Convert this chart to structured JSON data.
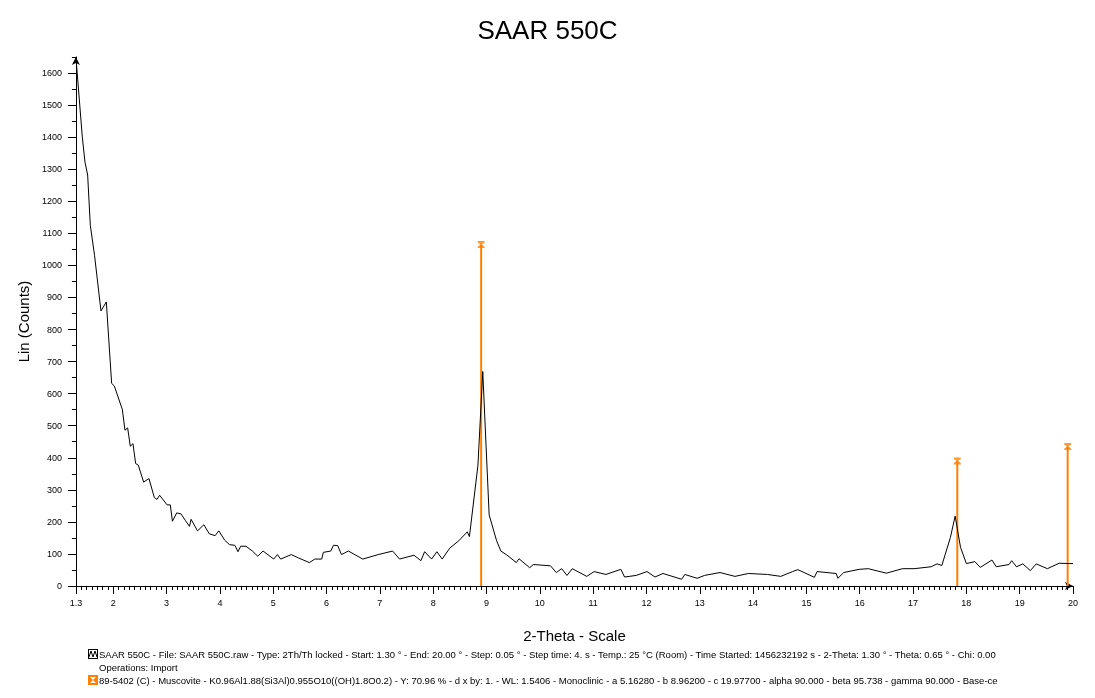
{
  "chart_data": {
    "type": "line",
    "title": "SAAR 550C",
    "xlabel": "2-Theta - Scale",
    "ylabel": "Lin (Counts)",
    "xlim": [
      1.3,
      20
    ],
    "xticks": [
      1.3,
      2,
      3,
      4,
      5,
      6,
      7,
      8,
      9,
      10,
      11,
      12,
      13,
      14,
      15,
      16,
      17,
      18,
      19,
      20
    ],
    "ylim": [
      0,
      1650
    ],
    "yticks": [
      0,
      100,
      200,
      300,
      400,
      500,
      600,
      700,
      800,
      900,
      1000,
      1100,
      1200,
      1300,
      1400,
      1500,
      1600
    ],
    "grid": false,
    "series": [
      {
        "color": "#000000",
        "x": [
          1.3,
          1.42,
          1.47,
          1.52,
          1.57,
          1.65,
          1.77,
          1.87,
          1.97,
          2.02,
          2.17,
          2.22,
          2.27,
          2.32,
          2.37,
          2.42,
          2.47,
          2.57,
          2.67,
          2.77,
          2.82,
          2.87,
          3.01,
          3.07,
          3.11,
          3.19,
          3.27,
          3.35,
          3.43,
          3.46,
          3.58,
          3.7,
          3.8,
          3.91,
          3.98,
          4.09,
          4.18,
          4.28,
          4.34,
          4.39,
          4.49,
          4.61,
          4.71,
          4.81,
          5.01,
          5.08,
          5.14,
          5.34,
          5.48,
          5.68,
          5.78,
          5.91,
          5.94,
          6.08,
          6.13,
          6.21,
          6.28,
          6.41,
          6.68,
          6.97,
          7.24,
          7.37,
          7.64,
          7.77,
          7.84,
          7.97,
          8.07,
          8.17,
          8.31,
          8.48,
          8.64,
          8.68,
          8.84,
          8.93,
          9.05,
          9.19,
          9.27,
          9.38,
          9.56,
          9.61,
          9.81,
          9.88,
          10.2,
          10.31,
          10.41,
          10.51,
          10.61,
          10.88,
          11.02,
          11.24,
          11.52,
          11.59,
          11.81,
          12.01,
          12.16,
          12.31,
          12.66,
          12.72,
          12.95,
          13.09,
          13.38,
          13.66,
          13.91,
          14.27,
          14.52,
          14.74,
          14.84,
          15.15,
          15.2,
          15.56,
          15.59,
          15.7,
          15.99,
          16.16,
          16.5,
          16.8,
          17.02,
          17.34,
          17.45,
          17.54,
          17.7,
          17.79,
          17.89,
          18.0,
          18.16,
          18.26,
          18.48,
          18.56,
          18.8,
          18.85,
          18.94,
          19.06,
          19.2,
          19.31,
          19.52,
          19.74,
          19.93,
          20
        ],
        "values": [
          1650,
          1400,
          1322,
          1282,
          1125,
          1030,
          858,
          886,
          632,
          624,
          551,
          486,
          493,
          436,
          444,
          382,
          377,
          324,
          335,
          276,
          270,
          283,
          253,
          253,
          202,
          228,
          225,
          205,
          186,
          208,
          172,
          191,
          163,
          157,
          172,
          143,
          129,
          127,
          107,
          124,
          124,
          109,
          93,
          109,
          84,
          98,
          84,
          98,
          87,
          73,
          84,
          84,
          105,
          109,
          127,
          126,
          98,
          109,
          84,
          98,
          109,
          84,
          96,
          79,
          107,
          84,
          107,
          84,
          118,
          141,
          169,
          154,
          377,
          669,
          222,
          141,
          109,
          97,
          73,
          85,
          57,
          67,
          63,
          42,
          54,
          33,
          54,
          30,
          45,
          36,
          52,
          28,
          33,
          45,
          28,
          39,
          21,
          36,
          24,
          33,
          42,
          30,
          39,
          36,
          30,
          45,
          51,
          27,
          45,
          39,
          24,
          42,
          52,
          54,
          40,
          54,
          54,
          60,
          69,
          64,
          151,
          218,
          121,
          70,
          76,
          58,
          81,
          60,
          67,
          79,
          60,
          69,
          48,
          69,
          54,
          71,
          70,
          70
        ]
      },
      {
        "type": "lollipop",
        "color": "#ff8000",
        "x": [
          8.9,
          17.83,
          19.9
        ],
        "values": [
          1065,
          390,
          435
        ]
      }
    ],
    "annotations": [
      "SAAR 550C - File: SAAR 550C.raw - Type: 2Th/Th locked - Start: 1.30 ° - End: 20.00 ° - Step: 0.05 ° - Step time: 4. s - Temp.: 25 °C (Room) - Time Started: 1456232192 s - 2-Theta: 1.30 ° - Theta: 0.65 ° - Chi: 0.00",
      "Operations: Import",
      "89-5402 (C) - Muscovite - K0.96Al1.88(Si3Al)0.955O10((OH)1.8O0.2) - Y: 70.96 % - d x by: 1. - WL: 1.5406 - Monoclinic - a 5.16280 - b 8.96200 - c 19.97700 - alpha 90.000 - beta 95.738 - gamma 90.000 - Base-ce"
    ]
  }
}
